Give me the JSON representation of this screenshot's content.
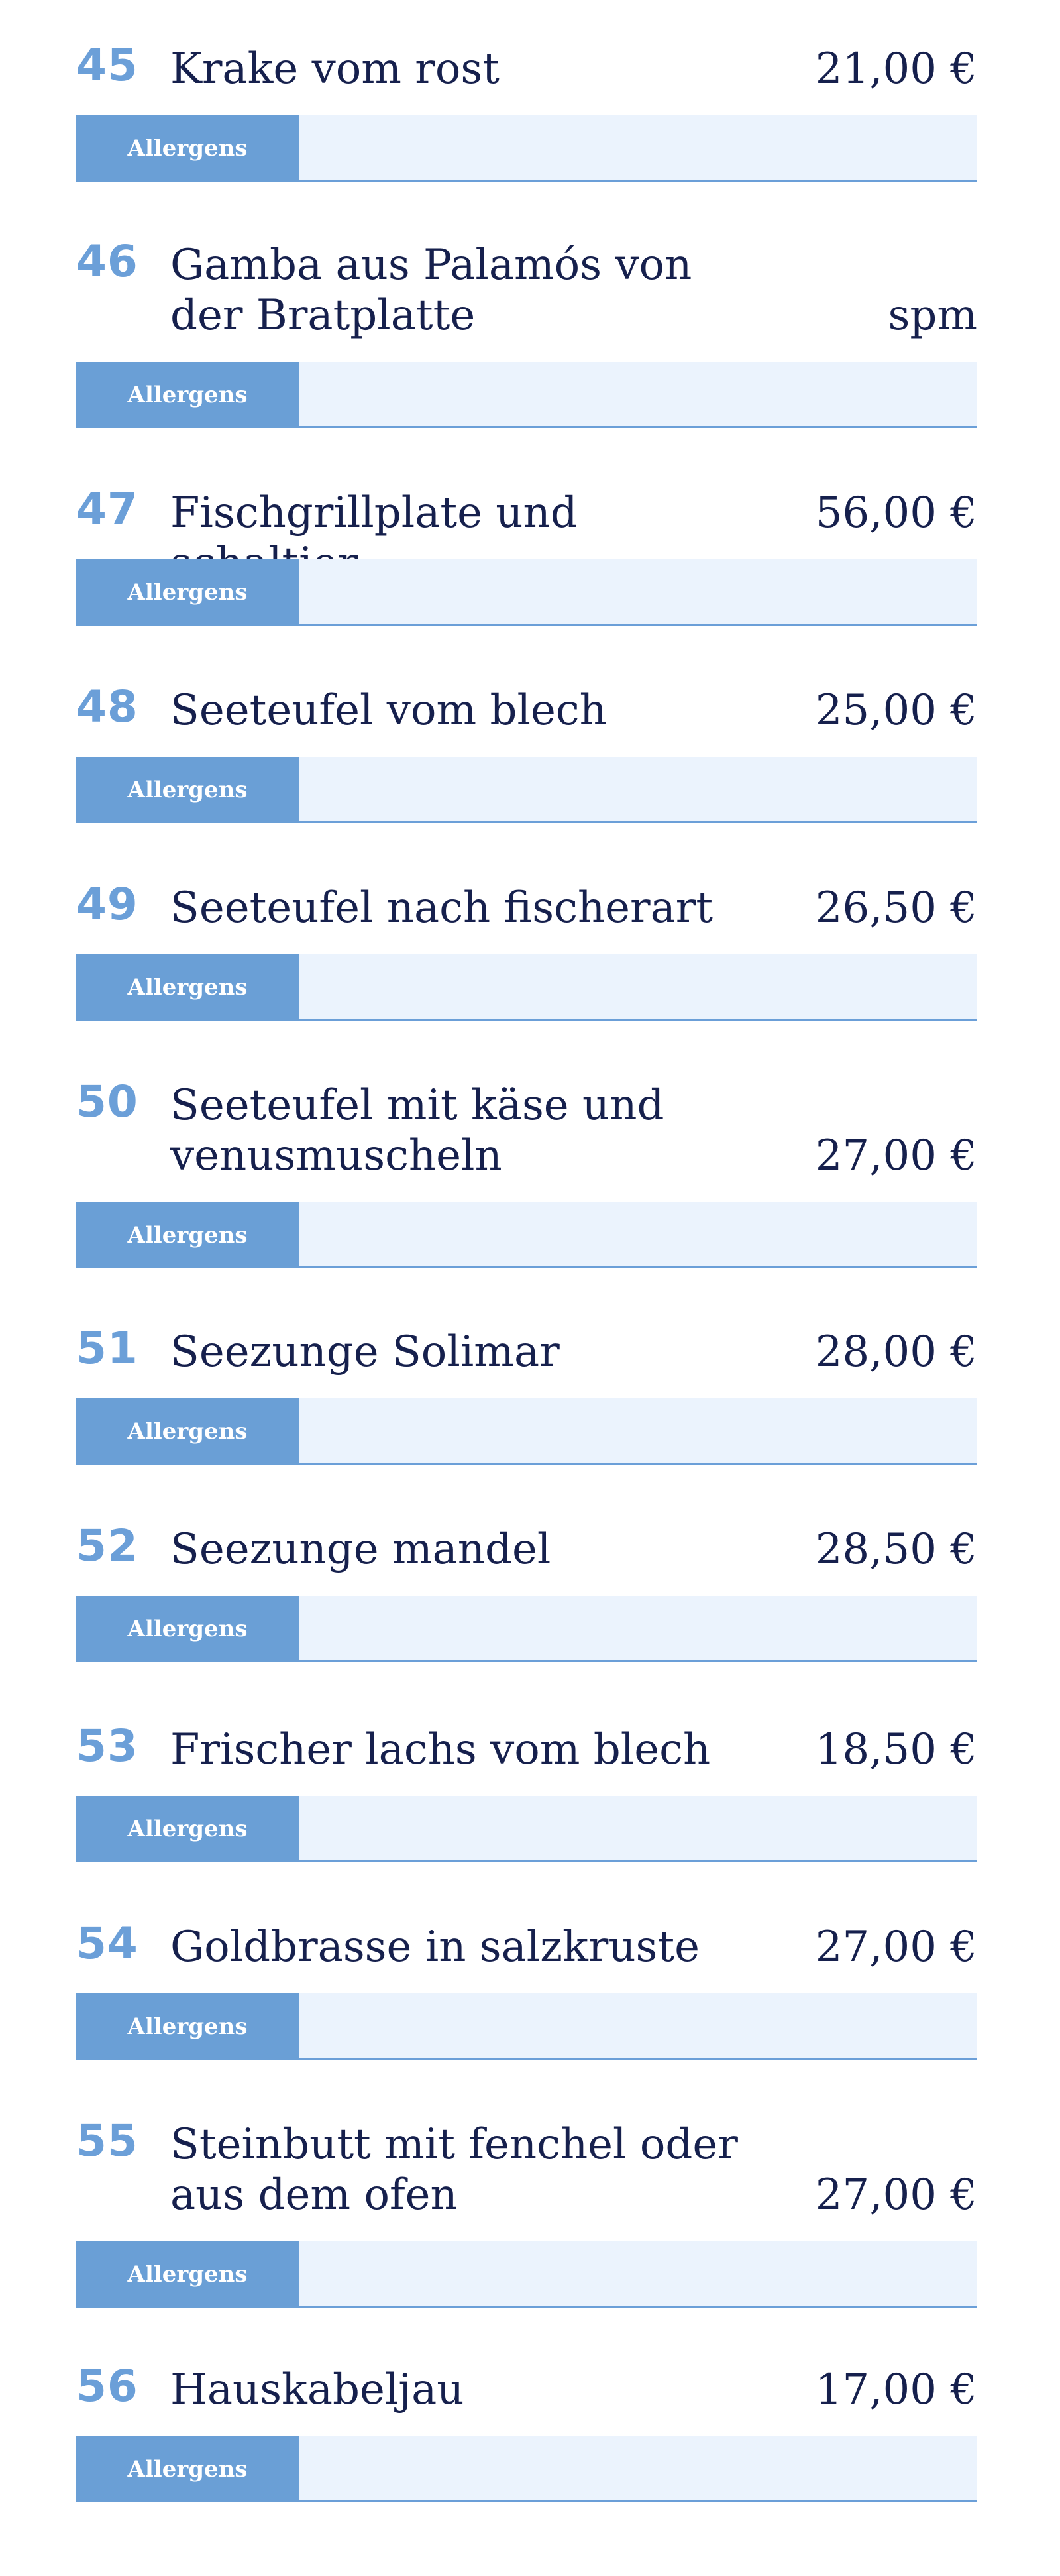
{
  "menu": {
    "allergens_label": "Allergens",
    "items": [
      {
        "number": "45",
        "name": "Krake vom rost",
        "price": "21,00 €"
      },
      {
        "number": "46",
        "name": "Gamba aus Palamós von der Bratplatte",
        "price": "spm"
      },
      {
        "number": "47",
        "name": "Fischgrillplate und schaltier",
        "price": "56,00 €"
      },
      {
        "number": "48",
        "name": "Seeteufel vom blech",
        "price": "25,00 €"
      },
      {
        "number": "49",
        "name": "Seeteufel nach fischerart",
        "price": "26,50 €"
      },
      {
        "number": "50",
        "name": "Seeteufel mit käse und venusmuscheln",
        "price": "27,00 €"
      },
      {
        "number": "51",
        "name": "Seezunge Solimar",
        "price": "28,00 €"
      },
      {
        "number": "52",
        "name": "Seezunge mandel",
        "price": "28,50 €"
      },
      {
        "number": "53",
        "name": "Frischer lachs vom blech",
        "price": "18,50 €"
      },
      {
        "number": "54",
        "name": "Goldbrasse in salzkruste",
        "price": "27,00 €"
      },
      {
        "number": "55",
        "name": "Steinbutt mit fenchel oder aus dem ofen",
        "price": "27,00 €"
      },
      {
        "number": "56",
        "name": "Hauskabeljau",
        "price": "17,00 €"
      }
    ]
  }
}
